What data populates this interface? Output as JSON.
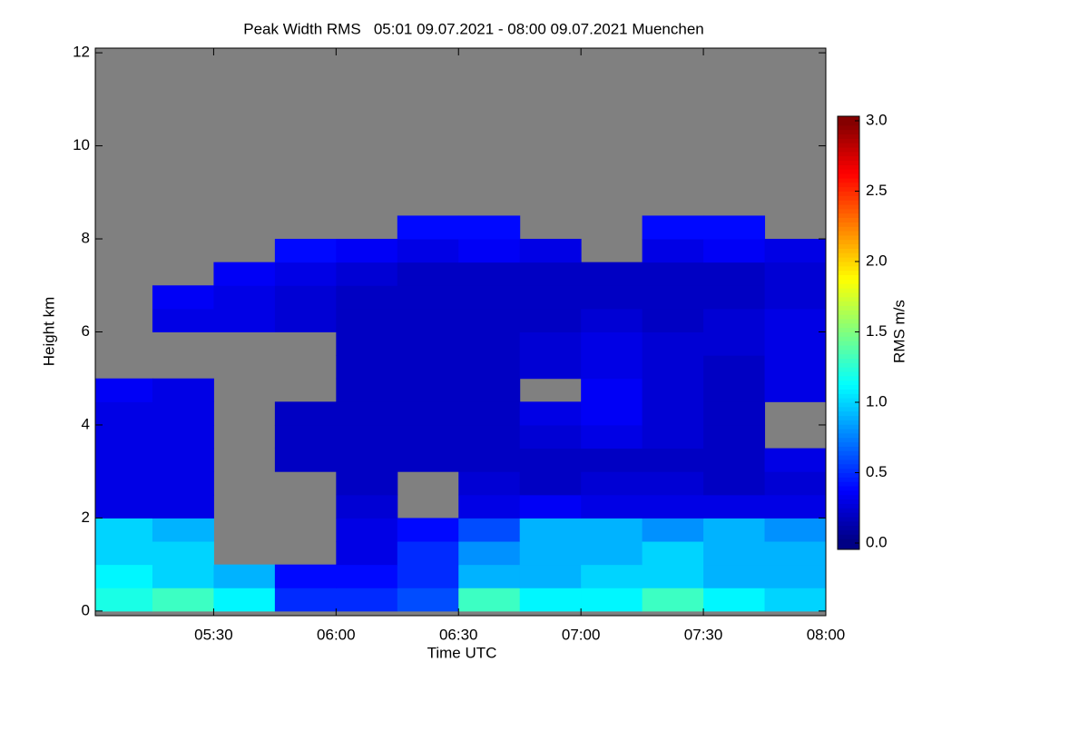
{
  "chart_data": {
    "type": "heatmap",
    "title": "Peak Width RMS   05:01 09.07.2021 - 08:00 09.07.2021 Muenchen",
    "xlabel": "Time UTC",
    "ylabel": "Height km",
    "xlim": [
      301,
      480
    ],
    "xticks": [
      {
        "value": 330,
        "label": "05:30"
      },
      {
        "value": 360,
        "label": "06:00"
      },
      {
        "value": 390,
        "label": "06:30"
      },
      {
        "value": 420,
        "label": "07:00"
      },
      {
        "value": 450,
        "label": "07:30"
      },
      {
        "value": 480,
        "label": "08:00"
      }
    ],
    "ylim": [
      -0.1,
      12.1
    ],
    "yticks": [
      0,
      2,
      4,
      6,
      8,
      10,
      12
    ],
    "missing_color": "#808080",
    "x_bins": [
      301,
      315,
      330,
      345,
      360,
      375,
      390,
      405,
      420,
      435,
      450,
      465,
      480
    ],
    "y_bins": [
      0,
      0.5,
      1,
      1.5,
      2,
      2.5,
      3,
      3.5,
      4,
      4.5,
      5,
      5.5,
      6,
      6.5,
      7,
      7.5,
      8,
      8.5
    ],
    "z": [
      [
        1.2,
        1.3,
        1.1,
        0.5,
        0.5,
        0.6,
        1.3,
        1.1,
        1.1,
        1.3,
        1.1,
        1.0
      ],
      [
        1.1,
        1.0,
        0.9,
        0.4,
        0.4,
        0.5,
        0.9,
        0.9,
        1.0,
        1.0,
        0.9,
        0.9
      ],
      [
        1.0,
        1.0,
        null,
        null,
        0.3,
        0.5,
        0.8,
        0.9,
        0.9,
        1.0,
        0.9,
        0.9
      ],
      [
        1.0,
        0.9,
        null,
        null,
        0.3,
        0.4,
        0.6,
        0.9,
        0.9,
        0.8,
        0.9,
        0.8
      ],
      [
        0.3,
        0.3,
        null,
        null,
        0.25,
        null,
        0.3,
        0.35,
        0.3,
        0.3,
        0.3,
        0.3
      ],
      [
        0.3,
        0.3,
        null,
        null,
        0.2,
        null,
        0.25,
        0.2,
        0.25,
        0.25,
        0.2,
        0.25
      ],
      [
        0.3,
        0.3,
        null,
        0.2,
        0.2,
        0.2,
        0.2,
        0.2,
        0.2,
        0.2,
        0.2,
        0.3
      ],
      [
        0.3,
        0.3,
        null,
        0.2,
        0.2,
        0.2,
        0.2,
        0.25,
        0.3,
        0.25,
        0.2,
        null
      ],
      [
        0.3,
        0.3,
        null,
        0.2,
        0.2,
        0.2,
        0.2,
        0.3,
        0.35,
        0.25,
        0.2,
        null
      ],
      [
        0.35,
        0.3,
        null,
        null,
        0.2,
        0.2,
        0.2,
        null,
        0.35,
        0.25,
        0.2,
        0.3
      ],
      [
        null,
        null,
        null,
        null,
        0.2,
        0.2,
        0.2,
        0.25,
        0.3,
        0.25,
        0.2,
        0.3
      ],
      [
        null,
        null,
        null,
        null,
        0.2,
        0.2,
        0.2,
        0.25,
        0.3,
        0.25,
        0.25,
        0.3
      ],
      [
        null,
        0.3,
        0.3,
        0.25,
        0.2,
        0.2,
        0.2,
        0.2,
        0.25,
        0.2,
        0.25,
        0.3
      ],
      [
        null,
        0.35,
        0.3,
        0.25,
        0.2,
        0.2,
        0.2,
        0.2,
        0.2,
        0.2,
        0.2,
        0.25
      ],
      [
        null,
        null,
        0.35,
        0.3,
        0.25,
        0.2,
        0.2,
        0.2,
        0.2,
        0.2,
        0.2,
        0.25
      ],
      [
        null,
        null,
        null,
        0.4,
        0.35,
        0.3,
        0.35,
        0.3,
        null,
        0.3,
        0.35,
        0.3
      ],
      [
        null,
        null,
        null,
        null,
        null,
        0.4,
        0.4,
        null,
        null,
        0.4,
        0.4,
        null
      ]
    ],
    "colorbar": {
      "label": "RMS m/s",
      "lim": [
        0,
        3
      ],
      "ticks": [
        {
          "value": 0,
          "label": "0.0"
        },
        0.5,
        {
          "value": 1,
          "label": "1.0"
        },
        1.5,
        {
          "value": 2,
          "label": "2.0"
        },
        2.5,
        {
          "value": 3,
          "label": "3.0"
        }
      ]
    }
  }
}
